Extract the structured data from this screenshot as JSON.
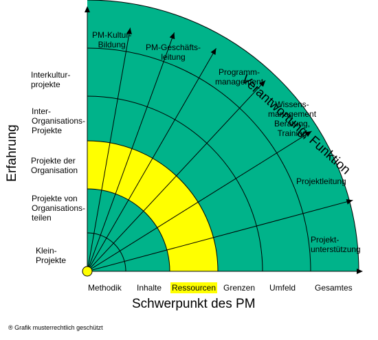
{
  "colors": {
    "outer_fill": "#00b38a",
    "highlight": "#ffff00",
    "stroke": "#000000"
  },
  "rings": {
    "labels": [
      "Methodik",
      "Inhalte",
      "Ressourcen",
      "Grenzen",
      "Umfeld",
      "Gesamtes"
    ],
    "highlighted_index": 2
  },
  "levels": [
    "Klein-\nProjekte",
    "Projekte von\nOrganisations-\nteilen",
    "Projekte der\nOrganisation",
    "Inter-\nOrganisations-\nProjekte",
    "Interkultur-\nprojekte"
  ],
  "rays": [
    "Projekt-\nunterstützung",
    "Projektleitung",
    "Wissens-\nmanagement\nBeratung,\nTraining",
    "Programm-\nmanagement",
    "PM-Geschäfts-\nleitung",
    "PM-Kultur-\nBildung"
  ],
  "axes": {
    "y_title": "Erfahrung",
    "x_title": "Schwerpunkt des PM",
    "diagonal_title": "Verantwortung, Funktion"
  },
  "copyright": "® Grafik musterrechtlich geschützt"
}
